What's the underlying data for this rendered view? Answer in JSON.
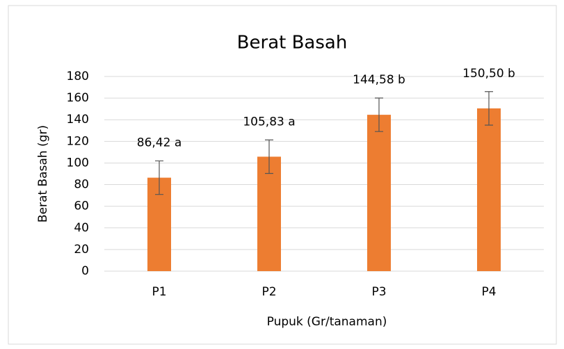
{
  "chart_data": {
    "type": "bar",
    "title": "Berat Basah",
    "x_label": "Pupuk (Gr/tanaman)",
    "y_label": "Berat Basah (gr)",
    "categories": [
      "P1",
      "P2",
      "P3",
      "P4"
    ],
    "values": [
      86.42,
      105.83,
      144.58,
      150.5
    ],
    "value_labels": [
      "86,42 a",
      "105,83 a",
      "144,58 b",
      "150,50 b"
    ],
    "errors": [
      15.5,
      15.5,
      15.5,
      15.5
    ],
    "color": "#ed7d31",
    "ylim": [
      0,
      180
    ],
    "yticks": [
      0,
      20,
      40,
      60,
      80,
      100,
      120,
      140,
      160,
      180
    ],
    "grid": true
  }
}
